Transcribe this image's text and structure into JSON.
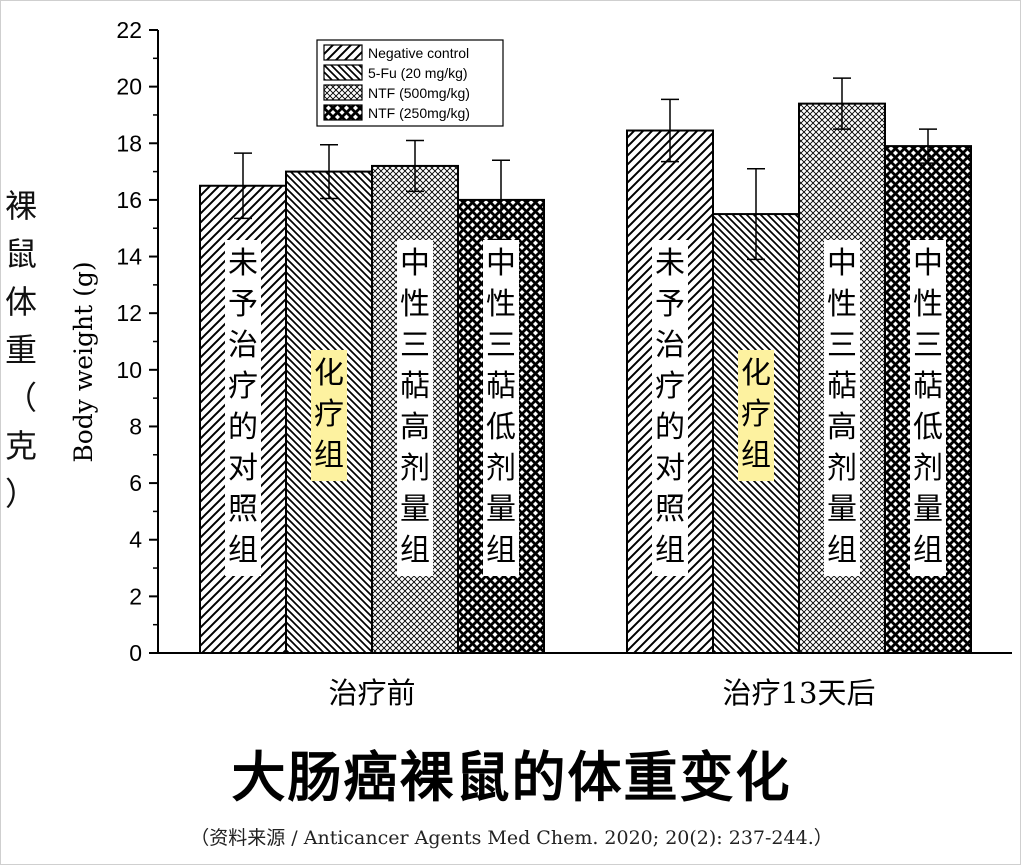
{
  "chart_data": {
    "type": "bar",
    "title": "大肠癌裸鼠的体重变化",
    "source": "（资料来源 / Anticancer Agents Med Chem. 2020; 20(2): 237-244.）",
    "ylabel": "Body weight (g)",
    "ylabel_cn": "裸鼠体重（克）",
    "ylim": [
      0,
      22
    ],
    "yticks": [
      0,
      2,
      4,
      6,
      8,
      10,
      12,
      14,
      16,
      18,
      20,
      22
    ],
    "categories": [
      "治疗前",
      "治疗13天后"
    ],
    "legend_position": "top-left",
    "series": [
      {
        "name": "Negative control",
        "pattern": "diag-right",
        "bar_label": "未予治疗的对照组",
        "highlight": false,
        "values": [
          16.5,
          18.45
        ],
        "errors": [
          1.15,
          1.1
        ]
      },
      {
        "name": "5-Fu (20 mg/kg)",
        "pattern": "diag-left",
        "bar_label": "化疗组",
        "highlight": true,
        "values": [
          17.0,
          15.5
        ],
        "errors": [
          0.95,
          1.6
        ]
      },
      {
        "name": "NTF (500mg/kg)",
        "pattern": "cross-fine",
        "bar_label": "中性三萜高剂量组",
        "highlight": false,
        "values": [
          17.2,
          19.4
        ],
        "errors": [
          0.9,
          0.9
        ]
      },
      {
        "name": "NTF (250mg/kg)",
        "pattern": "cross-bold",
        "bar_label": "中性三萜低剂量组",
        "highlight": false,
        "values": [
          16.0,
          17.9
        ],
        "errors": [
          1.4,
          0.6
        ]
      }
    ],
    "colors": {
      "bar_edge": "#000000",
      "label_bg": "#ffffff",
      "highlight_bg": "#fdf2a0"
    }
  }
}
